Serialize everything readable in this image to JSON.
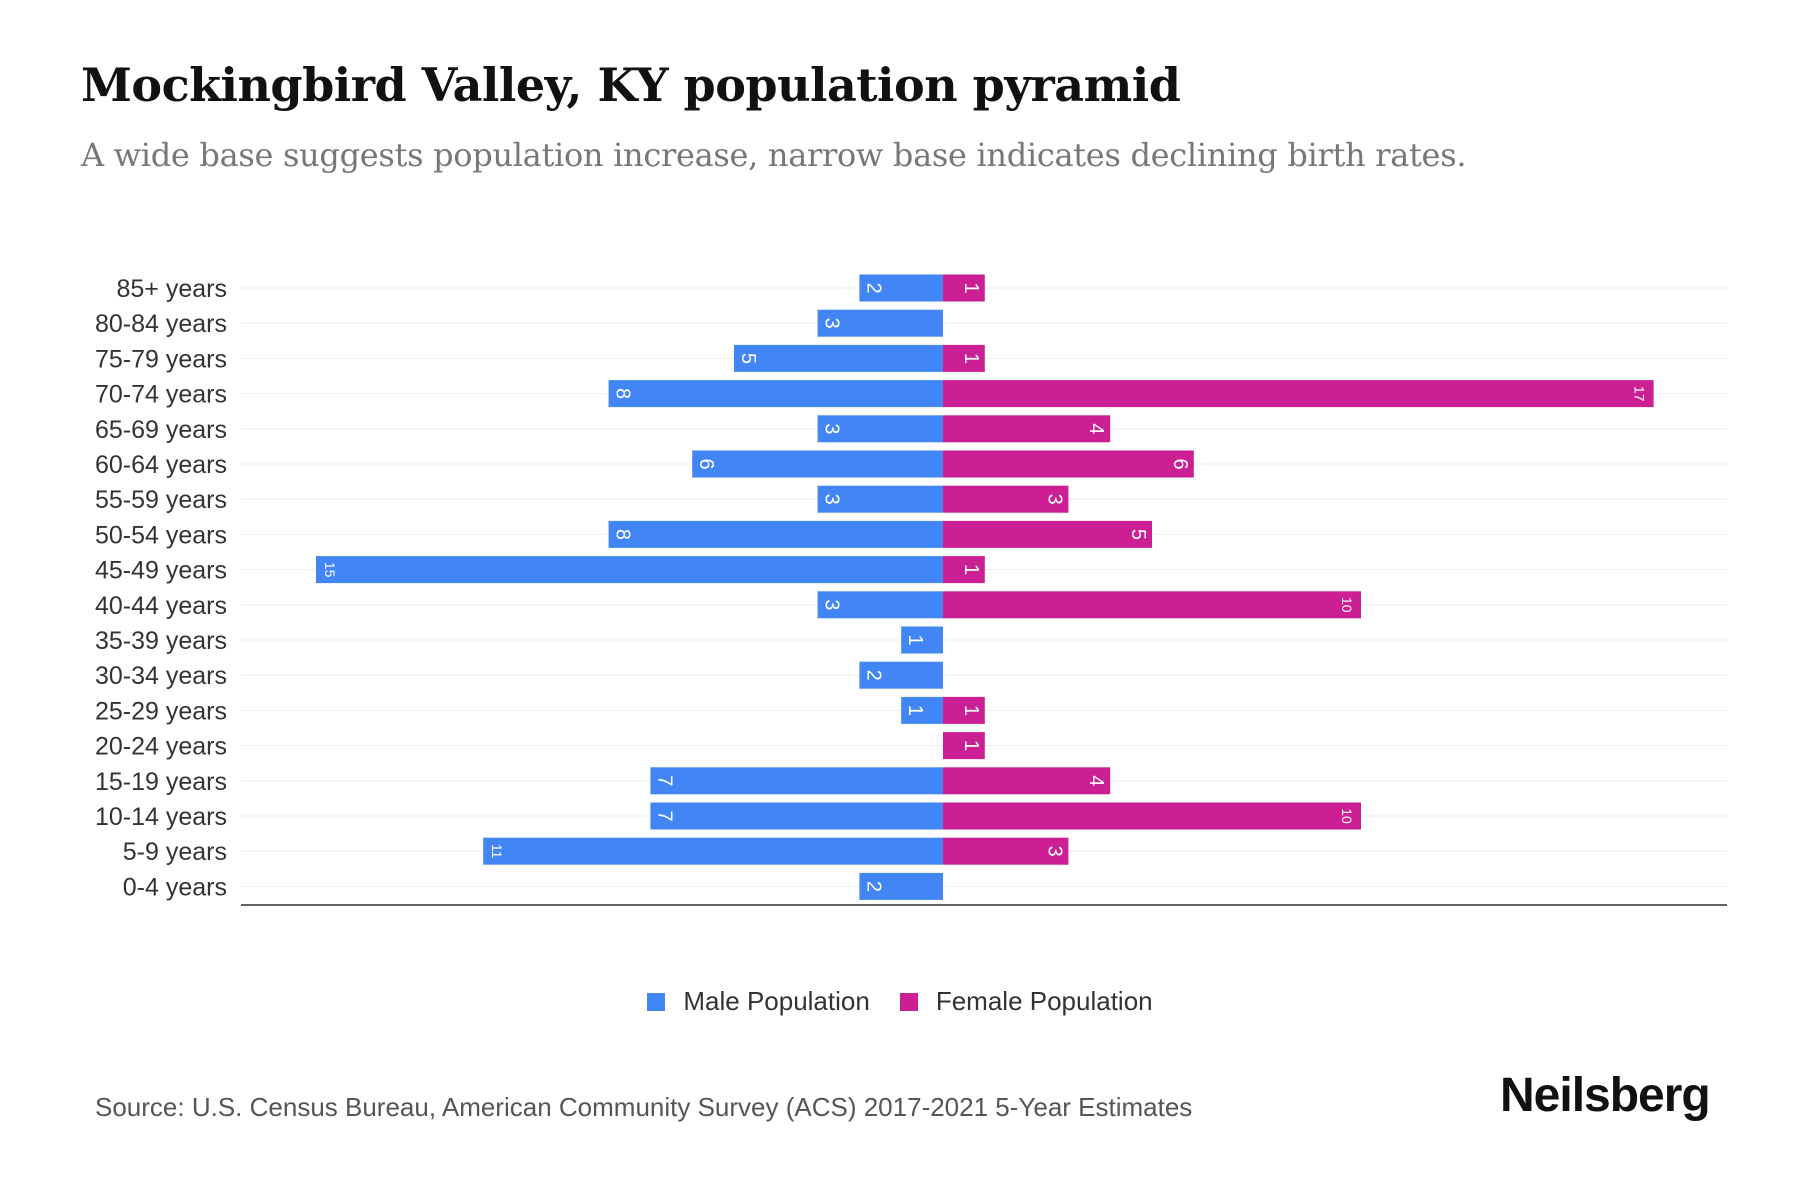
{
  "chart_data": {
    "type": "bar",
    "orientation": "horizontal-pyramid",
    "title": "Mockingbird Valley, KY population pyramid",
    "subtitle": "A wide base suggests population increase, narrow base indicates declining birth rates.",
    "categories": [
      "85+ years",
      "80-84 years",
      "75-79 years",
      "70-74 years",
      "65-69 years",
      "60-64 years",
      "55-59 years",
      "50-54 years",
      "45-49 years",
      "40-44 years",
      "35-39 years",
      "30-34 years",
      "25-29 years",
      "20-24 years",
      "15-19 years",
      "10-14 years",
      "5-9 years",
      "0-4 years"
    ],
    "series": [
      {
        "name": "Male Population",
        "color": "#4285f4",
        "values": [
          2,
          3,
          5,
          8,
          3,
          6,
          3,
          8,
          15,
          3,
          1,
          2,
          1,
          0,
          7,
          7,
          11,
          2
        ]
      },
      {
        "name": "Female Population",
        "color": "#cc1f93",
        "values": [
          1,
          0,
          1,
          17,
          4,
          6,
          3,
          5,
          1,
          10,
          0,
          0,
          1,
          1,
          4,
          10,
          3,
          0
        ]
      }
    ],
    "xlim": [
      -17,
      18
    ],
    "grid": true,
    "legend_position": "bottom-center"
  },
  "source": "Source: U.S. Census Bureau, American Community Survey (ACS) 2017-2021 5-Year Estimates",
  "brand": "Neilsberg"
}
